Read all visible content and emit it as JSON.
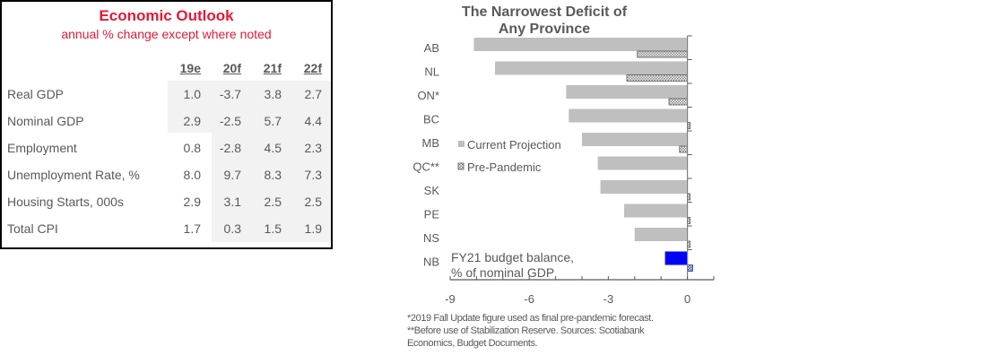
{
  "outlook": {
    "title": "Economic Outlook",
    "subtitle": "annual % change except where noted",
    "columns": [
      "19e",
      "20f",
      "21f",
      "22f"
    ],
    "rows": [
      {
        "label": "Real GDP",
        "values": [
          "1.0",
          "-3.7",
          "3.8",
          "2.7"
        ]
      },
      {
        "label": "Nominal GDP",
        "values": [
          "2.9",
          "-2.5",
          "5.7",
          "4.4"
        ]
      },
      {
        "label": "Employment",
        "values": [
          "0.8",
          "-2.8",
          "4.5",
          "2.3"
        ]
      },
      {
        "label": "Unemployment Rate, %",
        "values": [
          "8.0",
          "9.7",
          "8.3",
          "7.3"
        ]
      },
      {
        "label": "Housing Starts, 000s",
        "values": [
          "2.9",
          "3.1",
          "2.5",
          "2.5"
        ]
      },
      {
        "label": "Total CPI",
        "values": [
          "1.7",
          "0.3",
          "1.5",
          "1.9"
        ]
      }
    ],
    "title_color": "#e31937"
  },
  "chart_data": {
    "type": "bar",
    "orientation": "horizontal",
    "title": "The Narrowest Deficit of Any Province",
    "title_lines": [
      "The Narrowest Deficit of",
      "Any Province"
    ],
    "categories": [
      "AB",
      "NL",
      "ON*",
      "BC",
      "MB",
      "QC**",
      "SK",
      "PE",
      "NS",
      "NB"
    ],
    "series": [
      {
        "name": "Current Projection",
        "values": [
          -8.1,
          -7.3,
          -4.6,
          -4.5,
          -4.0,
          -3.4,
          -3.3,
          -2.4,
          -2.0,
          -0.85
        ],
        "color": "#bfbfbf",
        "highlight": {
          "NB": "#0000ff"
        }
      },
      {
        "name": "Pre-Pandemic",
        "values": [
          -1.9,
          -2.3,
          -0.7,
          0.1,
          -0.3,
          0.0,
          0.1,
          0.1,
          0.1,
          0.2
        ],
        "pattern": "hatched"
      }
    ],
    "xlim": [
      -9,
      1
    ],
    "xticks": [
      -9,
      -6,
      -3,
      0
    ],
    "xlabel": "",
    "ylabel": "",
    "annotation": [
      "FY21 budget balance,",
      "% of nominal GDP"
    ],
    "legend": {
      "position": "middle-left",
      "entries": [
        "Current Projection",
        "Pre-Pandemic"
      ]
    },
    "grid": false,
    "footnotes": [
      "*2019 Fall Update figure used as final pre-pandemic forecast.",
      "**Before use of Stabilization Reserve. Sources: Scotiabank",
      "Economics, Budget Documents."
    ]
  }
}
